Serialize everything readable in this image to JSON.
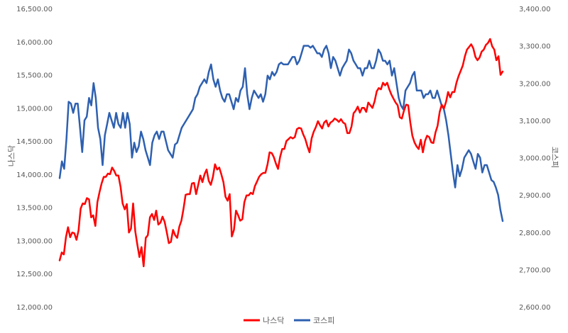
{
  "chart_data": {
    "type": "line",
    "title": "",
    "legend_position": "bottom",
    "grid": false,
    "y_left": {
      "label": "나스닥",
      "range": [
        12000,
        16500
      ],
      "ticks": [
        "12,000.00",
        "12,500.00",
        "13,000.00",
        "13,500.00",
        "14,000.00",
        "14,500.00",
        "15,000.00",
        "15,500.00",
        "16,000.00",
        "16,500.00"
      ]
    },
    "y_right": {
      "label": "코스피",
      "range": [
        2600,
        3400
      ],
      "ticks": [
        "2,600.00",
        "2,700.00",
        "2,800.00",
        "2,900.00",
        "3,000.00",
        "3,100.00",
        "3,200.00",
        "3,300.00",
        "3,400.00"
      ]
    },
    "series": [
      {
        "name": "나스닥",
        "axis": "left",
        "color": "#ff0000",
        "values": [
          12700,
          12820,
          12790,
          13050,
          13200,
          13050,
          13120,
          13110,
          13010,
          13150,
          13480,
          13560,
          13550,
          13640,
          13620,
          13350,
          13380,
          13220,
          13580,
          13730,
          13860,
          13960,
          13960,
          14010,
          14000,
          14100,
          14050,
          13980,
          13980,
          13810,
          13560,
          13470,
          13550,
          13120,
          13180,
          13560,
          13140,
          12940,
          12750,
          12900,
          12610,
          13040,
          13080,
          13350,
          13400,
          13310,
          13450,
          13240,
          13270,
          13360,
          13280,
          13130,
          12960,
          12980,
          13160,
          13080,
          13040,
          13210,
          13300,
          13480,
          13690,
          13700,
          13700,
          13860,
          13870,
          13700,
          13840,
          13980,
          13880,
          14000,
          14070,
          13900,
          13840,
          13960,
          14150,
          14070,
          14100,
          14000,
          13880,
          13660,
          13600,
          13700,
          13060,
          13160,
          13450,
          13380,
          13300,
          13320,
          13580,
          13680,
          13680,
          13720,
          13700,
          13820,
          13890,
          13960,
          14000,
          14020,
          14020,
          14150,
          14330,
          14320,
          14260,
          14160,
          14080,
          14260,
          14380,
          14380,
          14500,
          14530,
          14560,
          14540,
          14560,
          14680,
          14700,
          14690,
          14600,
          14530,
          14420,
          14330,
          14540,
          14640,
          14710,
          14800,
          14740,
          14690,
          14780,
          14810,
          14720,
          14780,
          14800,
          14840,
          14820,
          14790,
          14830,
          14780,
          14760,
          14620,
          14620,
          14720,
          14920,
          14960,
          15020,
          14930,
          15000,
          15000,
          14940,
          15080,
          15040,
          15000,
          15100,
          15250,
          15300,
          15280,
          15380,
          15340,
          15380,
          15280,
          15200,
          15140,
          15080,
          15040,
          14860,
          14840,
          14960,
          15050,
          15040,
          14780,
          14580,
          14480,
          14420,
          14380,
          14520,
          14330,
          14500,
          14580,
          14560,
          14480,
          14470,
          14630,
          14730,
          14940,
          15050,
          14990,
          15090,
          15240,
          15160,
          15240,
          15240,
          15380,
          15480,
          15560,
          15640,
          15780,
          15880,
          15920,
          15960,
          15900,
          15770,
          15720,
          15760,
          15850,
          15880,
          15950,
          15980,
          16040,
          15930,
          15880,
          15720,
          15780,
          15500,
          15550
        ]
      },
      {
        "name": "코스피",
        "axis": "right",
        "color": "#2e60b0",
        "values": [
          2945,
          2990,
          2970,
          3050,
          3150,
          3145,
          3120,
          3145,
          3145,
          3080,
          3015,
          3100,
          3110,
          3160,
          3140,
          3200,
          3160,
          3080,
          3050,
          2980,
          3060,
          3090,
          3120,
          3100,
          3080,
          3120,
          3090,
          3080,
          3120,
          3080,
          3120,
          3090,
          3000,
          3040,
          3015,
          3030,
          3070,
          3050,
          3020,
          3000,
          2980,
          3040,
          3060,
          3070,
          3050,
          3070,
          3070,
          3045,
          3020,
          3010,
          3000,
          3035,
          3040,
          3060,
          3080,
          3090,
          3100,
          3110,
          3120,
          3130,
          3160,
          3170,
          3190,
          3200,
          3210,
          3200,
          3230,
          3250,
          3210,
          3190,
          3210,
          3180,
          3160,
          3150,
          3170,
          3170,
          3150,
          3130,
          3160,
          3150,
          3180,
          3190,
          3240,
          3170,
          3130,
          3160,
          3180,
          3170,
          3160,
          3170,
          3150,
          3170,
          3220,
          3210,
          3230,
          3220,
          3230,
          3250,
          3255,
          3250,
          3250,
          3250,
          3260,
          3270,
          3270,
          3250,
          3260,
          3280,
          3300,
          3300,
          3300,
          3295,
          3300,
          3290,
          3280,
          3280,
          3270,
          3290,
          3300,
          3280,
          3240,
          3270,
          3260,
          3240,
          3220,
          3240,
          3250,
          3260,
          3290,
          3280,
          3260,
          3250,
          3240,
          3240,
          3220,
          3240,
          3240,
          3260,
          3240,
          3240,
          3260,
          3290,
          3280,
          3260,
          3260,
          3250,
          3260,
          3220,
          3240,
          3200,
          3160,
          3140,
          3130,
          3180,
          3190,
          3200,
          3220,
          3230,
          3180,
          3180,
          3180,
          3160,
          3170,
          3170,
          3180,
          3160,
          3160,
          3180,
          3160,
          3140,
          3130,
          3100,
          3060,
          3010,
          2960,
          2920,
          2980,
          2950,
          2970,
          3000,
          3010,
          3020,
          3010,
          2990,
          2970,
          3010,
          3000,
          2960,
          2980,
          2980,
          2960,
          2940,
          2935,
          2920,
          2900,
          2860,
          2830
        ]
      }
    ]
  }
}
